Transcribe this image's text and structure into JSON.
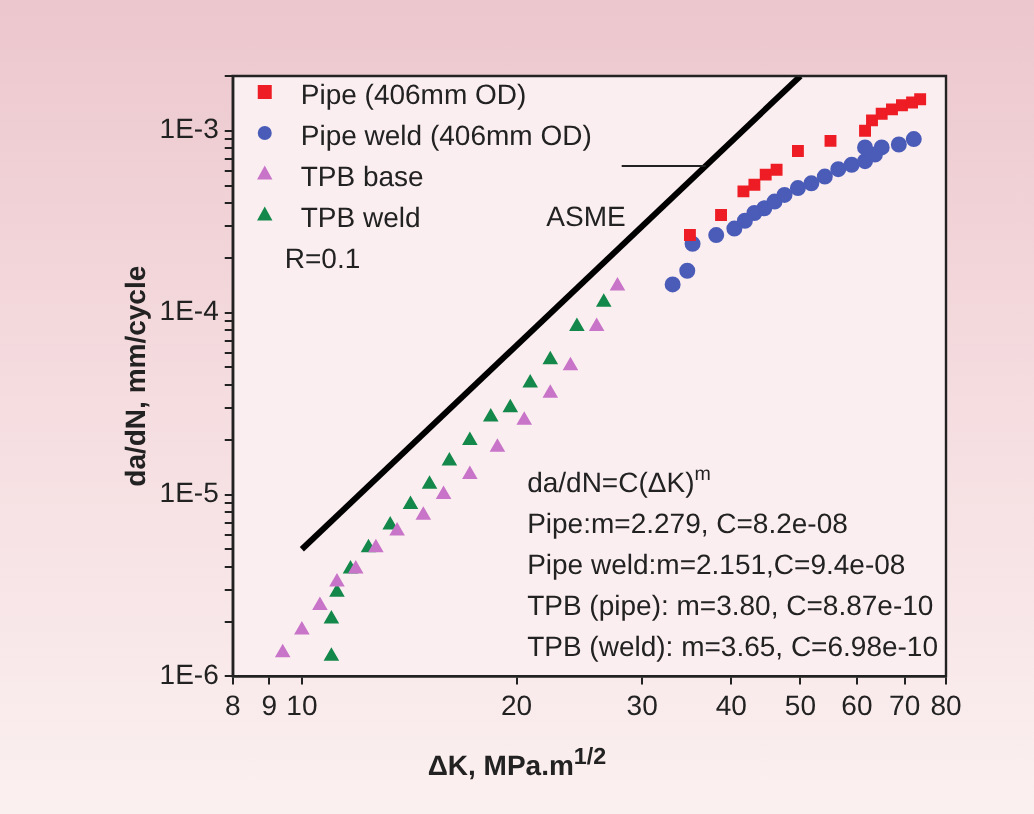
{
  "chart_data": {
    "type": "scatter",
    "xlabel": "ΔK, MPa.m$^{1/2}$",
    "ylabel": "da/dN, mm/cycle",
    "log": "xy",
    "grid": false,
    "legend": "top left",
    "xlim": [
      8,
      80
    ],
    "xticks": [
      8,
      9,
      10,
      20,
      30,
      40,
      50,
      60,
      70,
      80
    ],
    "ylim": [
      1e-06,
      0.002
    ],
    "yticks": [
      {
        "value": 1e-06,
        "label": "1E-6"
      },
      {
        "value": 2e-06,
        "label": null
      },
      {
        "value": 3e-06,
        "label": null
      },
      {
        "value": 4e-06,
        "label": null
      },
      {
        "value": 5e-06,
        "label": null
      },
      {
        "value": 6e-06,
        "label": null
      },
      {
        "value": 7e-06,
        "label": null
      },
      {
        "value": 8e-06,
        "label": null
      },
      {
        "value": 9e-06,
        "label": null
      },
      {
        "value": 1e-05,
        "label": "1E-5"
      },
      {
        "value": 2e-05,
        "label": null
      },
      {
        "value": 3e-05,
        "label": null
      },
      {
        "value": 4e-05,
        "label": null
      },
      {
        "value": 5e-05,
        "label": null
      },
      {
        "value": 6e-05,
        "label": null
      },
      {
        "value": 7e-05,
        "label": null
      },
      {
        "value": 8e-05,
        "label": null
      },
      {
        "value": 9e-05,
        "label": null
      },
      {
        "value": 0.0001,
        "label": "1E-4"
      },
      {
        "value": 0.0002,
        "label": null
      },
      {
        "value": 0.0003,
        "label": null
      },
      {
        "value": 0.0004,
        "label": null
      },
      {
        "value": 0.0005,
        "label": null
      },
      {
        "value": 0.0006,
        "label": null
      },
      {
        "value": 0.0007,
        "label": null
      },
      {
        "value": 0.0008,
        "label": null
      },
      {
        "value": 0.0009,
        "label": null
      },
      {
        "value": 0.001,
        "label": "1E-3"
      },
      {
        "value": 0.002,
        "label": null
      }
    ],
    "series": [
      {
        "name": "Pipe (406mm OD)",
        "color": "#ee1c24",
        "marker": "square",
        "x": [
          35,
          38.7,
          41.6,
          43.1,
          44.7,
          46.3,
          49.6,
          55.1,
          61.6,
          63,
          65,
          67.2,
          69.4,
          71.7,
          73.6
        ],
        "values": [
          0.000267,
          0.000344,
          0.000464,
          0.000505,
          0.000574,
          0.00061,
          0.000774,
          0.00088,
          0.001,
          0.00114,
          0.00124,
          0.00131,
          0.00138,
          0.00143,
          0.00149
        ]
      },
      {
        "name": "Pipe weld (406mm OD)",
        "color": "#4a5cb8",
        "marker": "circle",
        "x": [
          33.1,
          34.7,
          35.3,
          38.1,
          40.4,
          41.8,
          43.1,
          44.5,
          46,
          47.5,
          49.6,
          51.8,
          54.1,
          56.5,
          59,
          61.6,
          63.6,
          61.6,
          65,
          68.7,
          72.1
        ],
        "values": [
          0.000143,
          0.00017,
          0.000239,
          0.000267,
          0.00029,
          0.00032,
          0.000353,
          0.000375,
          0.000408,
          0.000444,
          0.000484,
          0.000514,
          0.00056,
          0.000615,
          0.00065,
          0.00068,
          0.00074,
          0.00081,
          0.00081,
          0.00084,
          0.0009
        ]
      },
      {
        "name": "TPB base",
        "color": "#c874c8",
        "marker": "triangle",
        "x": [
          9.4,
          10,
          10.6,
          11.2,
          11.9,
          12.7,
          13.6,
          14.8,
          15.8,
          17.2,
          18.8,
          20.5,
          22.3,
          23.8,
          25.9,
          27.7
        ],
        "values": [
          1.35e-06,
          1.8e-06,
          2.45e-06,
          3.3e-06,
          3.9e-06,
          5.1e-06,
          6.3e-06,
          7.7e-06,
          1e-05,
          1.29e-05,
          1.82e-05,
          2.56e-05,
          3.6e-05,
          5.1e-05,
          8.4e-05,
          0.00014
        ]
      },
      {
        "name": "TPB weld",
        "color": "#14884a",
        "marker": "triangle",
        "x": [
          11,
          11,
          11.2,
          11.7,
          12.4,
          13.3,
          14.2,
          15.1,
          16.1,
          17.2,
          18.4,
          19.6,
          20.9,
          22.3,
          24.3,
          26.5
        ],
        "values": [
          1.29e-06,
          2.07e-06,
          2.9e-06,
          3.9e-06,
          5.1e-06,
          6.8e-06,
          8.8e-06,
          1.14e-05,
          1.53e-05,
          1.98e-05,
          2.67e-05,
          3e-05,
          4.1e-05,
          5.5e-05,
          8.4e-05,
          0.000114
        ]
      },
      {
        "type": "line",
        "name": "ASME",
        "color": "#000000",
        "marker": "none",
        "x": [
          10,
          50
        ],
        "values": [
          5e-06,
          0.002
        ]
      }
    ],
    "annotations": [
      "R=0.1",
      "da/dN=C(ΔK)$^{m}$",
      "Pipe:m=2.279, C=8.2e-08",
      "Pipe weld:m=2.151,C=9.4e-08",
      "TPB (pipe): m=3.80, C=8.87e-10",
      "TPB (weld): m=3.65, C=6.98e-10"
    ]
  }
}
